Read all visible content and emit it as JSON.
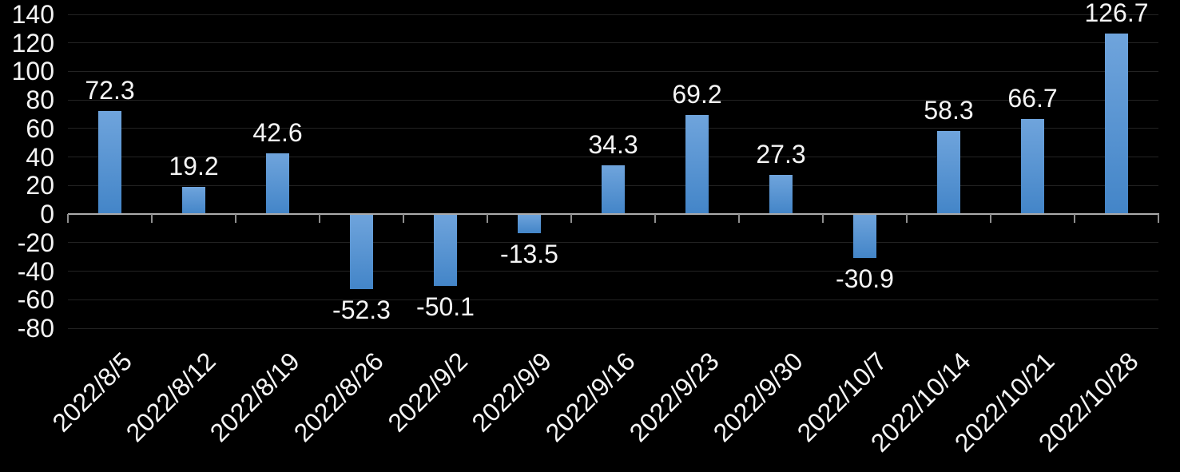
{
  "chart_data": {
    "type": "bar",
    "title": "",
    "xlabel": "",
    "ylabel": "",
    "categories": [
      "2022/8/5",
      "2022/8/12",
      "2022/8/19",
      "2022/8/26",
      "2022/9/2",
      "2022/9/9",
      "2022/9/16",
      "2022/9/23",
      "2022/9/30",
      "2022/10/7",
      "2022/10/14",
      "2022/10/21",
      "2022/10/28"
    ],
    "values": [
      72.3,
      19.2,
      42.6,
      -52.3,
      -50.1,
      -13.5,
      34.3,
      69.2,
      27.3,
      -30.9,
      58.3,
      66.7,
      126.7
    ],
    "data_labels": [
      "72.3",
      "19.2",
      "42.6",
      "-52.3",
      "-50.1",
      "-13.5",
      "34.3",
      "69.2",
      "27.3",
      "-30.9",
      "58.3",
      "66.7",
      "126.7"
    ],
    "y_ticks": [
      140,
      120,
      100,
      80,
      60,
      40,
      20,
      0,
      -20,
      -40,
      -60,
      -80
    ],
    "ylim": [
      -80,
      140
    ],
    "grid": true,
    "legend": false,
    "colors": {
      "background": "#000000",
      "bar_gradient_top": "#6FA4DC",
      "bar_gradient_bottom": "#4385C8",
      "gridline": "#232323",
      "zero_axis_line": "#ABABAB",
      "text": "#F5F5F5"
    }
  }
}
